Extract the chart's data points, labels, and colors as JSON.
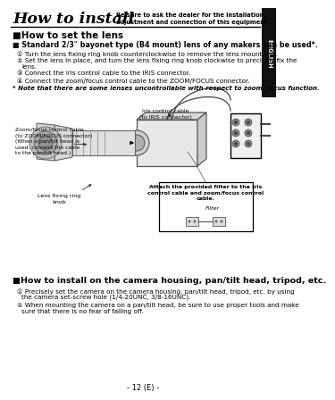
{
  "bg_color": "#ffffff",
  "title_text": "How to install",
  "title_subtitle": "Be sure to ask the dealer for the installation,\nadjustment and connection of this equipment.",
  "english_tab_text": "ENGLISH",
  "section1_header": "■How to set the lens",
  "bullet1": "■ Standard 2/3ʺ bayonet type (B4 mount) lens of any makers can be used*.",
  "steps_lens": [
    "① Turn the lens fixing ring knob counterclockwise to remove the lens mount cap.",
    "② Set the lens in place, and turn the lens fixing ring knob clockwise to precisely fix the\n     lens.",
    "③ Connect the iris control cable to the IRIS connector.",
    "④ Connect the zoom/focus control cable to the ZOOM/FOCUS connector."
  ],
  "note_lens": "* Note that there are some lenses uncontrollable with respect to zoom, focus function.",
  "iris_cable_label": "Iris control cable\n(to IRIS connector)",
  "zoom_cable_label": "Zoom/focus control cable\n(to ZOOM/FOCUS connector)\n(When a pan/tilt head is\nused, connect the cable\nto the pan/tilt head.)",
  "lens_ring_label": "Lens fixing ring\nknob",
  "filter_box_text": "Attach the provided filter to the iris\ncontrol cable and zoom/focus control\ncable.",
  "filter_label": "Filter",
  "section2_header": "■How to install on the camera housing, pan/tilt head, tripod, etc.",
  "steps_install": [
    "① Precisely set the camera on the camera housing, pan/tilt head, tripod, etc. by using\n    the camera set-screw hole (1/4-20UNC, 3/8-16UNC).",
    "② When mounting the camera on a pan/tilt head, be sure to use proper tools and make\n    sure that there is no fear of falling off."
  ],
  "page_number": "- 12 (E) -"
}
